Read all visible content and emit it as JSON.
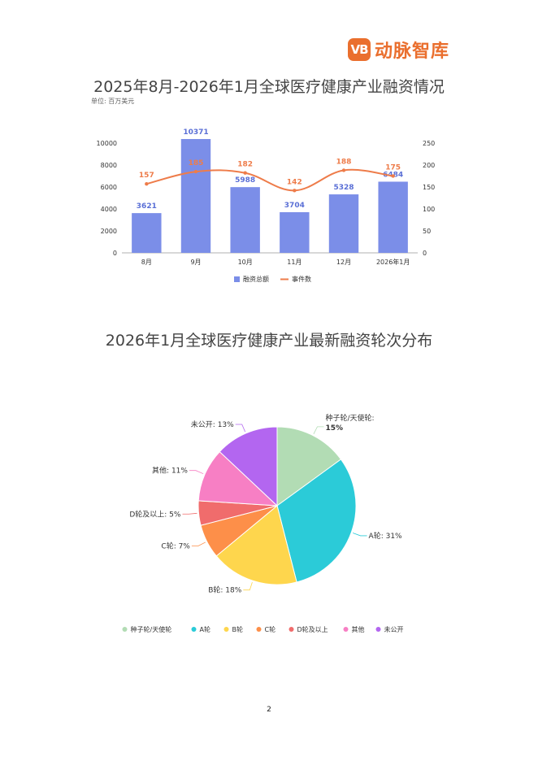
{
  "header": {
    "logo_mark": "VB",
    "logo_text": "动脉智库"
  },
  "page_number": "2",
  "chart_data": [
    {
      "type": "bar",
      "title": "2025年8月-2026年1月全球医疗健康产业融资情况",
      "subtitle": "单位: 百万美元",
      "categories": [
        "8月",
        "9月",
        "10月",
        "11月",
        "12月",
        "2026年1月"
      ],
      "series": [
        {
          "name": "融资总额",
          "type": "bar",
          "axis": "left",
          "color": "#7b8ee8",
          "values": [
            3621,
            10371,
            5988,
            3704,
            5328,
            6484
          ]
        },
        {
          "name": "事件数",
          "type": "line",
          "axis": "right",
          "color": "#ee7c4a",
          "values": [
            157,
            185,
            182,
            142,
            188,
            175
          ]
        }
      ],
      "ylim_left": [
        0,
        10000
      ],
      "yticks_left": [
        "0",
        "2000",
        "4000",
        "6000",
        "8000",
        "10000"
      ],
      "ylim_right": [
        0,
        250
      ],
      "yticks_right": [
        "0",
        "50",
        "100",
        "150",
        "200",
        "250"
      ],
      "legend": "bottom"
    },
    {
      "type": "pie",
      "title": "2026年1月全球医疗健康产业最新融资轮次分布",
      "slices": [
        {
          "label": "种子轮/天使轮",
          "value": 15,
          "text": "种子轮/天使轮: 15%",
          "color": "#b2dcb4"
        },
        {
          "label": "A轮",
          "value": 31,
          "text": "A轮: 31%",
          "color": "#2bcbd8"
        },
        {
          "label": "B轮",
          "value": 18,
          "text": "B轮: 18%",
          "color": "#fed64d"
        },
        {
          "label": "C轮",
          "value": 7,
          "text": "C轮: 7%",
          "color": "#fd8f49"
        },
        {
          "label": "D轮及以上",
          "value": 5,
          "text": "D轮及以上: 5%",
          "color": "#f06c6c"
        },
        {
          "label": "其他",
          "value": 11,
          "text": "其他: 11%",
          "color": "#f77fc4"
        },
        {
          "label": "未公开",
          "value": 13,
          "text": "未公开: 13%",
          "color": "#b366f0"
        }
      ],
      "legend": "bottom"
    }
  ]
}
